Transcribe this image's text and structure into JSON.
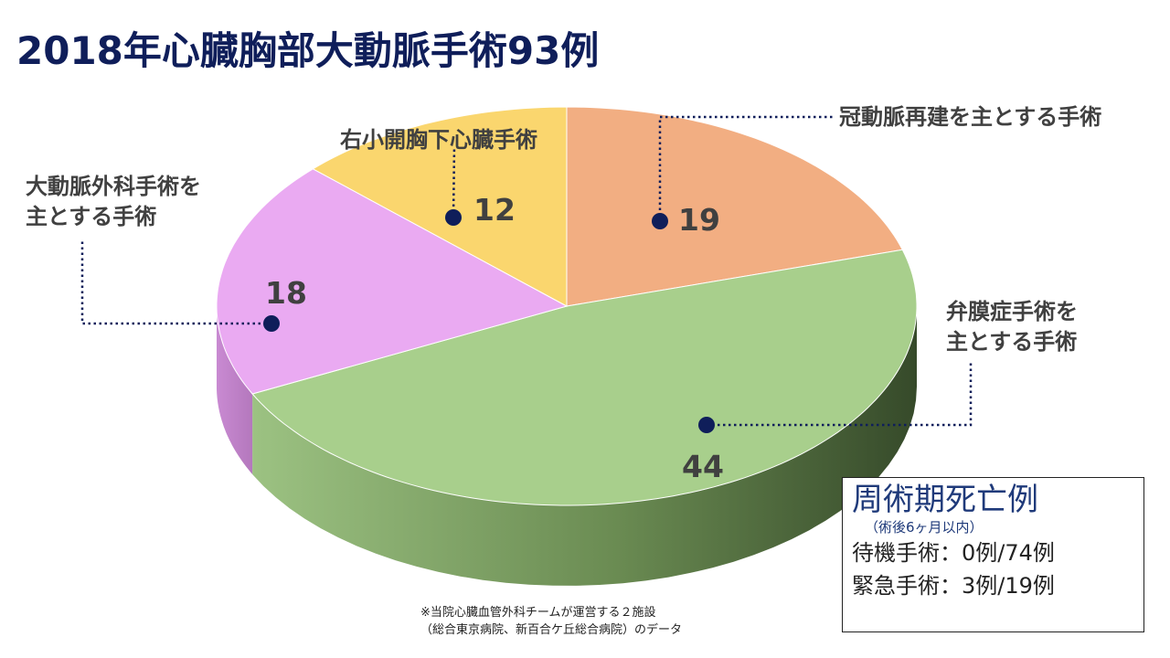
{
  "title": "2018年心臓胸部大動脈手術93例",
  "chart_data": {
    "type": "pie",
    "title": "2018年心臓胸部大動脈手術93例",
    "categories": [
      "冠動脈再建を主とする手術",
      "弁膜症手術を主とする手術",
      "大動脈外科手術を主とする手術",
      "右小開胸下心臓手術"
    ],
    "label_lines": [
      [
        "冠動脈再建を主とする手術"
      ],
      [
        "弁膜症手術を",
        "主とする手術"
      ],
      [
        "大動脈外科手術を",
        "主とする手術"
      ],
      [
        "右小開胸下心臓手術"
      ]
    ],
    "values": [
      19,
      44,
      18,
      12
    ],
    "value_labels": [
      "19",
      "44",
      "18",
      "12"
    ],
    "colors": [
      "#f2ae82",
      "#a8cf8c",
      "#eaaaf2",
      "#fad66e"
    ],
    "legend": "none"
  },
  "info_box": {
    "heading": "周術期死亡例",
    "subheading": "（術後6ヶ月以内）",
    "lines": [
      "待機手術：0例/74例",
      "緊急手術：3例/19例"
    ]
  },
  "footnote": {
    "lines": [
      "※当院心臓血管外科チームが運営する２施設",
      "（総合東京病院、新百合ケ丘総合病院）のデータ"
    ]
  }
}
